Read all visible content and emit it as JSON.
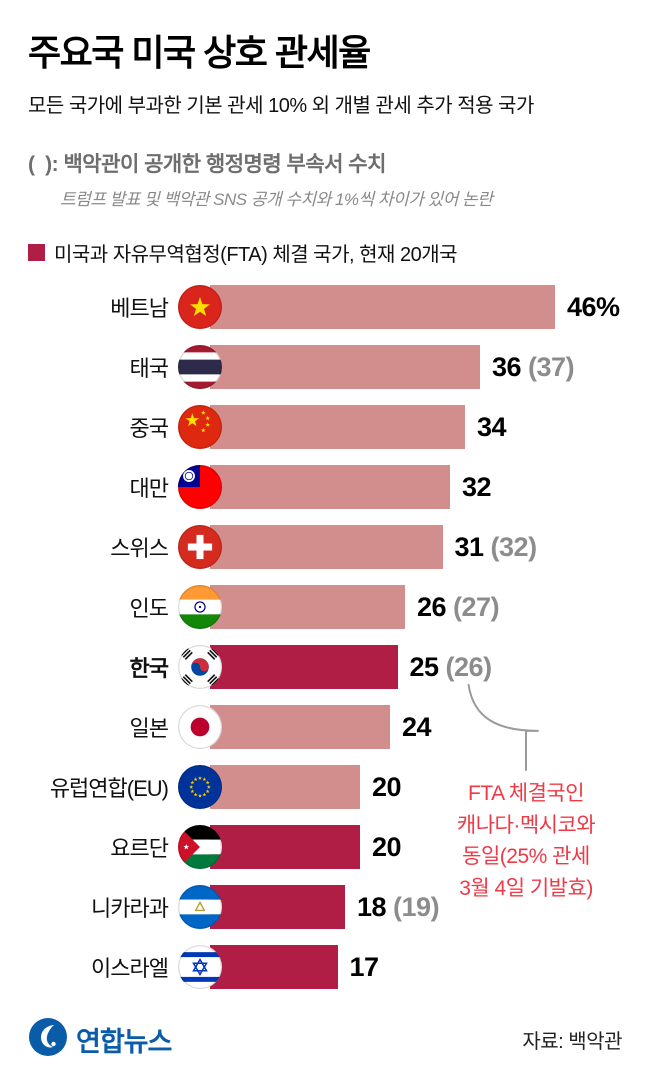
{
  "header": {
    "title": "주요국 미국 상호 관세율",
    "subtitle": "모든 국가에 부과한 기본 관세 10% 외 개별 관세 추가 적용 국가",
    "note": "(  ): 백악관이 공개한 행정명령 부속서 수치",
    "note_detail": "트럼프 발표 및 백악관 SNS 공개 수치와 1%씩 차이가 있어 논란",
    "legend": "미국과 자유무역협정(FTA) 체결 국가, 현재 20개국"
  },
  "chart_data": {
    "type": "bar",
    "orientation": "horizontal",
    "title": "주요국 미국 상호 관세율",
    "unit": "%",
    "xmax": 46,
    "colors": {
      "bar": "#d28d8d",
      "bar_fta": "#b01e46"
    },
    "rows": [
      {
        "label": "베트남",
        "value": 46,
        "display": "46%",
        "annex": null,
        "fta": false,
        "bold": false,
        "callout": false,
        "flag": "vietnam"
      },
      {
        "label": "태국",
        "value": 36,
        "display": "36",
        "annex": 37,
        "fta": false,
        "bold": false,
        "callout": false,
        "flag": "thailand"
      },
      {
        "label": "중국",
        "value": 34,
        "display": "34",
        "annex": null,
        "fta": false,
        "bold": false,
        "callout": false,
        "flag": "china"
      },
      {
        "label": "대만",
        "value": 32,
        "display": "32",
        "annex": null,
        "fta": false,
        "bold": false,
        "callout": false,
        "flag": "taiwan"
      },
      {
        "label": "스위스",
        "value": 31,
        "display": "31",
        "annex": 32,
        "fta": false,
        "bold": false,
        "callout": false,
        "flag": "switzerland"
      },
      {
        "label": "인도",
        "value": 26,
        "display": "26",
        "annex": 27,
        "fta": false,
        "bold": false,
        "callout": false,
        "flag": "india"
      },
      {
        "label": "한국",
        "value": 25,
        "display": "25",
        "annex": 26,
        "fta": true,
        "bold": true,
        "callout": true,
        "flag": "korea"
      },
      {
        "label": "일본",
        "value": 24,
        "display": "24",
        "annex": null,
        "fta": false,
        "bold": false,
        "callout": false,
        "flag": "japan"
      },
      {
        "label": "유럽연합(EU)",
        "value": 20,
        "display": "20",
        "annex": null,
        "fta": false,
        "bold": false,
        "callout": false,
        "flag": "eu"
      },
      {
        "label": "요르단",
        "value": 20,
        "display": "20",
        "annex": null,
        "fta": true,
        "bold": false,
        "callout": false,
        "flag": "jordan"
      },
      {
        "label": "니카라과",
        "value": 18,
        "display": "18",
        "annex": 19,
        "fta": true,
        "bold": false,
        "callout": false,
        "flag": "nicaragua"
      },
      {
        "label": "이스라엘",
        "value": 17,
        "display": "17",
        "annex": null,
        "fta": true,
        "bold": false,
        "callout": false,
        "flag": "israel"
      }
    ]
  },
  "annotation": {
    "text": "FTA 체결국인\n캐나다·멕시코와\n동일(25% 관세\n3월 4일 기발효)",
    "color": "#ee3a46"
  },
  "footer": {
    "logo_text": "연합뉴스",
    "logo_color": "#0a5ca8",
    "source": "자료: 백악관"
  }
}
